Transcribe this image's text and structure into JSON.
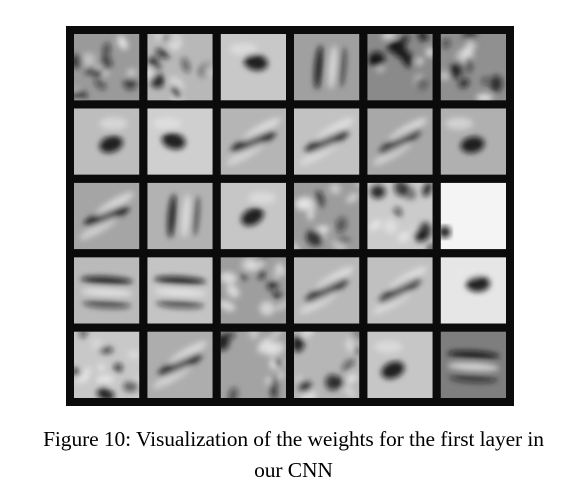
{
  "figure": {
    "grid": {
      "rows": 5,
      "cols": 6
    },
    "colors": {
      "frame": "#0b0b0b",
      "light": "#e8e8e8",
      "dark": "#111111"
    },
    "filters": [
      {
        "r": 0,
        "c": 0,
        "bg": "#9a9a9a",
        "pattern": "noise"
      },
      {
        "r": 0,
        "c": 1,
        "bg": "#b8b8b8",
        "pattern": "noise"
      },
      {
        "r": 0,
        "c": 2,
        "bg": "#c8c8c8",
        "pattern": "blob"
      },
      {
        "r": 0,
        "c": 3,
        "bg": "#a0a0a0",
        "pattern": "vertical"
      },
      {
        "r": 0,
        "c": 4,
        "bg": "#8a8a8a",
        "pattern": "noise"
      },
      {
        "r": 0,
        "c": 5,
        "bg": "#909090",
        "pattern": "noise"
      },
      {
        "r": 1,
        "c": 0,
        "bg": "#bdbdbd",
        "pattern": "blob"
      },
      {
        "r": 1,
        "c": 1,
        "bg": "#cfcfcf",
        "pattern": "blob"
      },
      {
        "r": 1,
        "c": 2,
        "bg": "#b5b5b5",
        "pattern": "diagonal"
      },
      {
        "r": 1,
        "c": 3,
        "bg": "#c2c2c2",
        "pattern": "diagonal"
      },
      {
        "r": 1,
        "c": 4,
        "bg": "#a8a8a8",
        "pattern": "diagonal"
      },
      {
        "r": 1,
        "c": 5,
        "bg": "#b0b0b0",
        "pattern": "blob"
      },
      {
        "r": 2,
        "c": 0,
        "bg": "#a5a5a5",
        "pattern": "diagonal"
      },
      {
        "r": 2,
        "c": 1,
        "bg": "#b2b2b2",
        "pattern": "vertical"
      },
      {
        "r": 2,
        "c": 2,
        "bg": "#c6c6c6",
        "pattern": "blob"
      },
      {
        "r": 2,
        "c": 3,
        "bg": "#9c9c9c",
        "pattern": "noise"
      },
      {
        "r": 2,
        "c": 4,
        "bg": "#cbcbcb",
        "pattern": "noise"
      },
      {
        "r": 2,
        "c": 5,
        "bg": "#f4f4f4",
        "pattern": "flat"
      },
      {
        "r": 3,
        "c": 0,
        "bg": "#bababa",
        "pattern": "horizontal"
      },
      {
        "r": 3,
        "c": 1,
        "bg": "#c4c4c4",
        "pattern": "horizontal"
      },
      {
        "r": 3,
        "c": 2,
        "bg": "#9e9e9e",
        "pattern": "noise"
      },
      {
        "r": 3,
        "c": 3,
        "bg": "#b8b8b8",
        "pattern": "diagonal"
      },
      {
        "r": 3,
        "c": 4,
        "bg": "#c0c0c0",
        "pattern": "diagonal"
      },
      {
        "r": 3,
        "c": 5,
        "bg": "#e6e6e6",
        "pattern": "blob"
      },
      {
        "r": 4,
        "c": 0,
        "bg": "#c8c8c8",
        "pattern": "noise"
      },
      {
        "r": 4,
        "c": 1,
        "bg": "#adadad",
        "pattern": "diagonal"
      },
      {
        "r": 4,
        "c": 2,
        "bg": "#a3a3a3",
        "pattern": "noise"
      },
      {
        "r": 4,
        "c": 3,
        "bg": "#b6b6b6",
        "pattern": "noise"
      },
      {
        "r": 4,
        "c": 4,
        "bg": "#c6c6c6",
        "pattern": "blob"
      },
      {
        "r": 4,
        "c": 5,
        "bg": "#7e7e7e",
        "pattern": "horizontal"
      }
    ]
  },
  "caption": {
    "line1": "Figure 10: Visualization of the weights for the first layer in",
    "line2": "our CNN"
  }
}
